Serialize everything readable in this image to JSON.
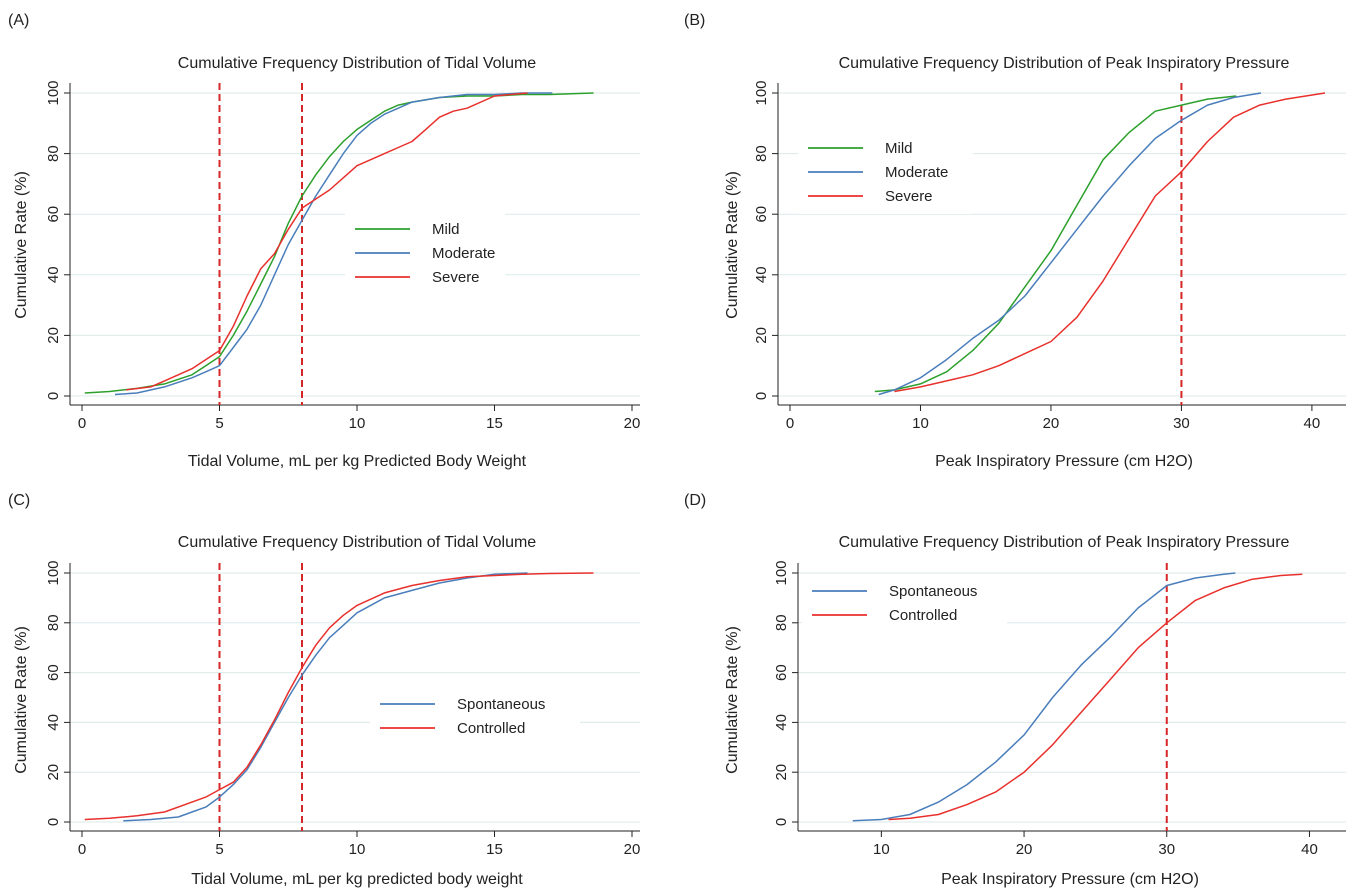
{
  "colors": {
    "mild": "#2ca02c",
    "moderate": "#4a7ebb",
    "severe": "#e8302c",
    "spontaneous": "#4a7ebb",
    "controlled": "#e8302c",
    "ref": "#d62728",
    "grid": "#dceaea"
  },
  "chart_data": [
    {
      "panel": "(A)",
      "type": "line",
      "title": "Cumulative Frequency Distribution of Tidal Volume",
      "xlabel": "Tidal Volume, mL per kg Predicted Body Weight",
      "ylabel": "Cumulative Rate (%)",
      "xlim": [
        0,
        20
      ],
      "ylim": [
        0,
        100
      ],
      "xticks": [
        "0",
        "5",
        "10",
        "15",
        "20"
      ],
      "yticks": [
        "0",
        "20",
        "40",
        "60",
        "80",
        "100"
      ],
      "reference_lines_x": [
        5,
        8
      ],
      "legend": "center-right",
      "series": [
        {
          "name": "Mild",
          "color": "#2ca02c",
          "x": [
            0.1,
            1,
            2,
            3,
            4,
            4.5,
            5,
            5.5,
            6,
            6.5,
            7,
            7.5,
            8,
            8.5,
            9,
            9.5,
            10,
            10.5,
            11,
            11.5,
            12,
            13,
            14,
            15,
            16,
            17,
            18.6
          ],
          "y": [
            1,
            1.5,
            2.5,
            4,
            7,
            10,
            13,
            20,
            28,
            37,
            46,
            57,
            66,
            73,
            79,
            84,
            88,
            91,
            94,
            96,
            97,
            98.5,
            99,
            99,
            99.5,
            99.5,
            100
          ]
        },
        {
          "name": "Moderate",
          "color": "#4a7ebb",
          "x": [
            1.2,
            2,
            3,
            4,
            4.5,
            5,
            5.5,
            6,
            6.5,
            7,
            7.5,
            8,
            8.5,
            9,
            9.5,
            10,
            10.5,
            11,
            11.5,
            12,
            13,
            14,
            15,
            16,
            17.1
          ],
          "y": [
            0.5,
            1,
            3,
            6,
            8,
            10,
            16,
            22,
            30,
            40,
            50,
            58,
            66,
            73,
            80,
            86,
            90,
            93,
            95,
            97,
            98.5,
            99.5,
            99.5,
            100,
            100
          ]
        },
        {
          "name": "Severe",
          "color": "#e8302c",
          "x": [
            1.6,
            2.5,
            3,
            4,
            4.5,
            5,
            5.5,
            6,
            6.5,
            7,
            7.5,
            8,
            8.5,
            9,
            9.5,
            10,
            11,
            11.5,
            12,
            12.5,
            13,
            13.5,
            14,
            15,
            16.2
          ],
          "y": [
            2,
            3,
            5,
            9,
            12,
            15,
            23,
            33,
            42,
            47,
            55,
            62,
            65,
            68,
            72,
            76,
            80,
            82,
            84,
            88,
            92,
            94,
            95,
            99,
            100
          ]
        }
      ]
    },
    {
      "panel": "(B)",
      "type": "line",
      "title": "Cumulative Frequency Distribution of Peak Inspiratory Pressure",
      "xlabel": "Peak Inspiratory Pressure (cm H2O)",
      "ylabel": "Cumulative Rate (%)",
      "xlim": [
        0,
        42
      ],
      "ylim": [
        0,
        100
      ],
      "xticks": [
        "0",
        "10",
        "20",
        "30",
        "40"
      ],
      "yticks": [
        "0",
        "20",
        "40",
        "60",
        "80",
        "100"
      ],
      "reference_lines_x": [
        30
      ],
      "legend": "top-left",
      "series": [
        {
          "name": "Mild",
          "color": "#2ca02c",
          "x": [
            6.5,
            8,
            10,
            12,
            14,
            16,
            18,
            20,
            22,
            24,
            26,
            28,
            30,
            32,
            34.2
          ],
          "y": [
            1.5,
            2,
            4,
            8,
            15,
            24,
            36,
            48,
            63,
            78,
            87,
            94,
            96,
            98,
            99
          ]
        },
        {
          "name": "Moderate",
          "color": "#4a7ebb",
          "x": [
            6.8,
            8,
            10,
            12,
            14,
            16,
            18,
            20,
            22,
            24,
            26,
            28,
            30,
            32,
            34,
            36.1
          ],
          "y": [
            0.5,
            2,
            6,
            12,
            19,
            25,
            33,
            44,
            55,
            66,
            76,
            85,
            91,
            96,
            98.5,
            100
          ]
        },
        {
          "name": "Severe",
          "color": "#e8302c",
          "x": [
            8,
            10,
            12,
            14,
            16,
            18,
            20,
            22,
            24,
            26,
            28,
            30,
            32,
            34,
            36,
            38,
            41
          ],
          "y": [
            1.5,
            3,
            5,
            7,
            10,
            14,
            18,
            26,
            38,
            52,
            66,
            74,
            84,
            92,
            96,
            98,
            100
          ]
        }
      ]
    },
    {
      "panel": "(C)",
      "type": "line",
      "title": "Cumulative Frequency Distribution of Tidal Volume",
      "xlabel": "Tidal Volume, mL per kg predicted body weight",
      "ylabel": "Cumulative Rate (%)",
      "xlim": [
        0,
        20
      ],
      "ylim": [
        0,
        100
      ],
      "xticks": [
        "0",
        "5",
        "10",
        "15",
        "20"
      ],
      "yticks": [
        "0",
        "20",
        "40",
        "60",
        "80",
        "100"
      ],
      "reference_lines_x": [
        5,
        8
      ],
      "legend": "center-right",
      "series": [
        {
          "name": "Spontaneous",
          "color": "#4a7ebb",
          "x": [
            1.5,
            2.5,
            3.5,
            4,
            4.5,
            5,
            5.5,
            6,
            6.5,
            7,
            7.5,
            8,
            8.5,
            9,
            9.5,
            10,
            11,
            12,
            13,
            14,
            15,
            16.2
          ],
          "y": [
            0.5,
            1,
            2,
            4,
            6,
            10,
            15,
            21,
            30,
            40,
            50,
            59,
            67,
            74,
            79,
            84,
            90,
            93,
            96,
            98,
            99.5,
            100
          ]
        },
        {
          "name": "Controlled",
          "color": "#e8302c",
          "x": [
            0.1,
            1,
            2,
            3,
            4,
            4.5,
            5,
            5.5,
            6,
            6.5,
            7,
            7.5,
            8,
            8.5,
            9,
            9.5,
            10,
            11,
            12,
            13,
            14,
            15,
            16,
            17,
            18.6
          ],
          "y": [
            1,
            1.5,
            2.5,
            4,
            8,
            10,
            13,
            16,
            22,
            31,
            41,
            52,
            62,
            71,
            78,
            83,
            87,
            92,
            95,
            97,
            98.5,
            99,
            99.5,
            99.8,
            100
          ]
        }
      ]
    },
    {
      "panel": "(D)",
      "type": "line",
      "title": "Cumulative Frequency Distribution of Peak Inspiratory Pressure",
      "xlabel": "Peak Inspiratory Pressure (cm H2O)",
      "ylabel": "Cumulative Rate (%)",
      "xlim": [
        5,
        42
      ],
      "ylim": [
        0,
        100
      ],
      "xticks": [
        "10",
        "20",
        "30",
        "40"
      ],
      "yticks": [
        "0",
        "20",
        "40",
        "60",
        "80",
        "100"
      ],
      "reference_lines_x": [
        30
      ],
      "legend": "top-left",
      "series": [
        {
          "name": "Spontaneous",
          "color": "#4a7ebb",
          "x": [
            8,
            10,
            12,
            14,
            16,
            18,
            20,
            22,
            24,
            26,
            28,
            30,
            32,
            34,
            34.8
          ],
          "y": [
            0.5,
            1,
            3,
            8,
            15,
            24,
            35,
            50,
            63,
            74,
            86,
            95,
            98,
            99.5,
            100
          ]
        },
        {
          "name": "Controlled",
          "color": "#e8302c",
          "x": [
            10.5,
            12,
            14,
            16,
            18,
            20,
            22,
            24,
            26,
            28,
            30,
            32,
            34,
            36,
            38,
            39.5
          ],
          "y": [
            1,
            1.5,
            3,
            7,
            12,
            20,
            31,
            44,
            57,
            70,
            80,
            89,
            94,
            97.5,
            99,
            99.5
          ]
        }
      ]
    }
  ]
}
